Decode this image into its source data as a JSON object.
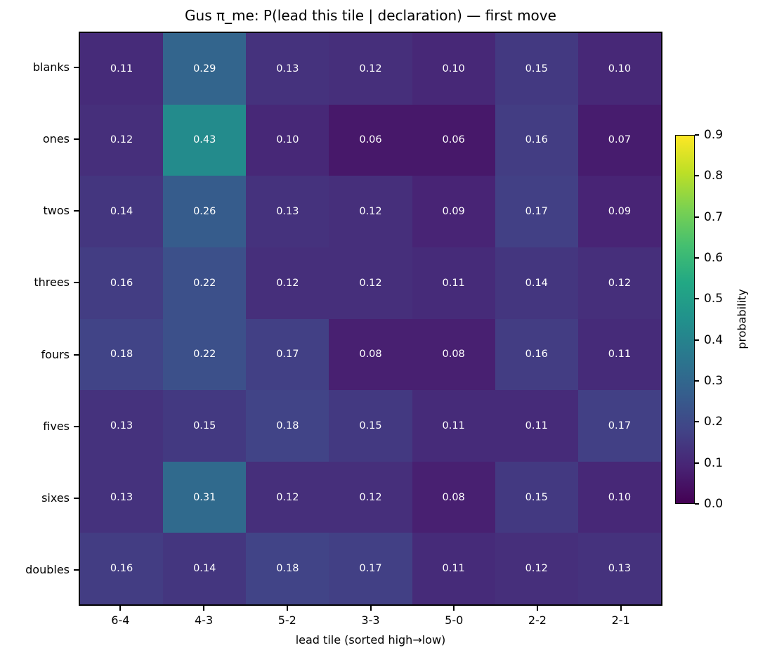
{
  "chart_data": {
    "type": "heatmap",
    "title": "Gus π_me: P(lead this tile | declaration) — first move",
    "xlabel": "lead tile (sorted high→low)",
    "ylabel": "",
    "x_categories": [
      "6-4",
      "4-3",
      "5-2",
      "3-3",
      "5-0",
      "2-2",
      "2-1"
    ],
    "y_categories": [
      "blanks",
      "ones",
      "twos",
      "threes",
      "fours",
      "fives",
      "sixes",
      "doubles"
    ],
    "values": [
      [
        0.11,
        0.29,
        0.13,
        0.12,
        0.1,
        0.15,
        0.1
      ],
      [
        0.12,
        0.43,
        0.1,
        0.06,
        0.06,
        0.16,
        0.07
      ],
      [
        0.14,
        0.26,
        0.13,
        0.12,
        0.09,
        0.17,
        0.09
      ],
      [
        0.16,
        0.22,
        0.12,
        0.12,
        0.11,
        0.14,
        0.12
      ],
      [
        0.18,
        0.22,
        0.17,
        0.08,
        0.08,
        0.16,
        0.11
      ],
      [
        0.13,
        0.15,
        0.18,
        0.15,
        0.11,
        0.11,
        0.17
      ],
      [
        0.13,
        0.31,
        0.12,
        0.12,
        0.08,
        0.15,
        0.1
      ],
      [
        0.16,
        0.14,
        0.18,
        0.17,
        0.11,
        0.12,
        0.13
      ]
    ],
    "value_format_decimals": 2,
    "cell_text_color": "#ffffff",
    "grid": false,
    "colorbar": {
      "label": "probability",
      "vmin": 0.0,
      "vmax": 0.9,
      "ticks": [
        0.0,
        0.1,
        0.2,
        0.3,
        0.4,
        0.5,
        0.6,
        0.7,
        0.8,
        0.9
      ],
      "tick_format_decimals": 1,
      "position": "right"
    },
    "colormap": {
      "name": "viridis",
      "stops": [
        "#440154",
        "#482475",
        "#414487",
        "#355f8d",
        "#2a788e",
        "#21918c",
        "#22a884",
        "#44bf70",
        "#7ad151",
        "#bddf26",
        "#fde725"
      ]
    },
    "axis_color": "#000000",
    "background_color": "#ffffff"
  }
}
